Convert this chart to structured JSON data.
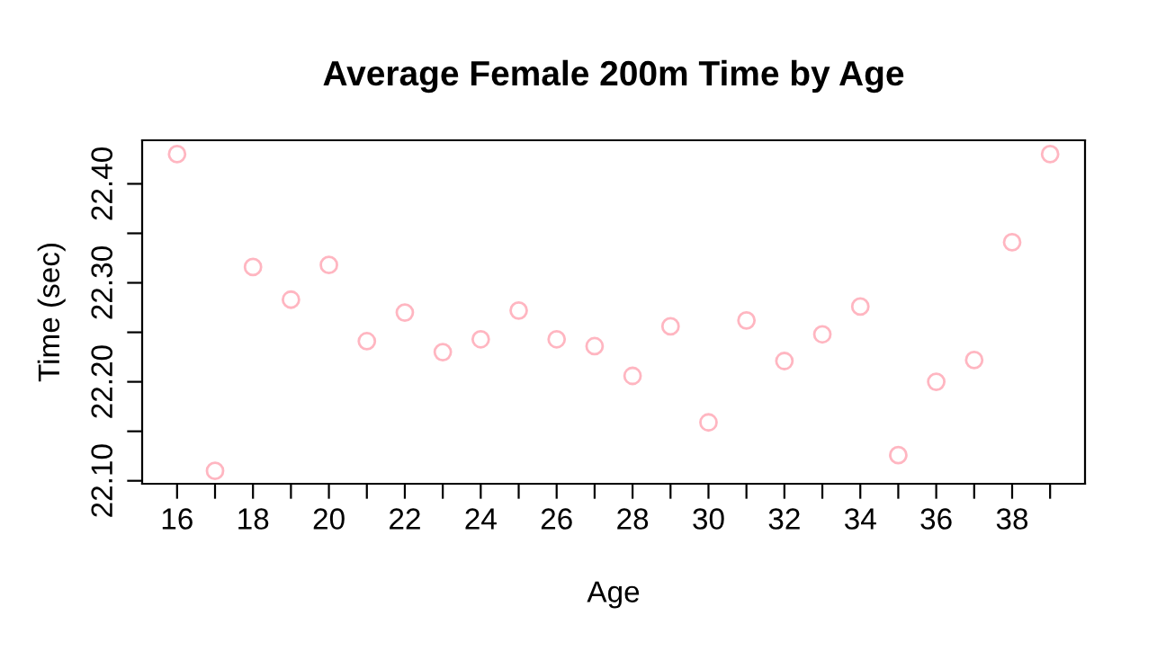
{
  "chart_data": {
    "type": "scatter",
    "title": "Average Female 200m Time by Age",
    "xlabel": "Age",
    "ylabel": "Time (sec)",
    "x": [
      16,
      17,
      18,
      19,
      20,
      21,
      22,
      23,
      24,
      25,
      26,
      27,
      28,
      29,
      30,
      31,
      32,
      33,
      34,
      35,
      36,
      37,
      38,
      39
    ],
    "series": [
      {
        "color": "#ffb6c1",
        "values": [
          22.43,
          22.11,
          22.316,
          22.283,
          22.318,
          22.241,
          22.27,
          22.23,
          22.243,
          22.272,
          22.243,
          22.236,
          22.206,
          22.256,
          22.159,
          22.262,
          22.221,
          22.248,
          22.276,
          22.126,
          22.2,
          22.222,
          22.341,
          22.43
        ]
      }
    ],
    "marker": "circle",
    "grid": false,
    "legend": false,
    "xlim": [
      15.08,
      39.92
    ],
    "ylim": [
      22.097,
      22.444
    ],
    "xticks": [
      16,
      {
        "value": 17,
        "label": null
      },
      18,
      {
        "value": 19,
        "label": null
      },
      20,
      {
        "value": 21,
        "label": null
      },
      22,
      {
        "value": 23,
        "label": null
      },
      24,
      {
        "value": 25,
        "label": null
      },
      26,
      {
        "value": 27,
        "label": null
      },
      28,
      {
        "value": 29,
        "label": null
      },
      30,
      {
        "value": 31,
        "label": null
      },
      32,
      {
        "value": 33,
        "label": null
      },
      34,
      {
        "value": 35,
        "label": null
      },
      36,
      {
        "value": 37,
        "label": null
      },
      38,
      {
        "value": 39,
        "label": null
      }
    ],
    "yticks": [
      {
        "value": 22.1,
        "label": "22.10"
      },
      {
        "value": 22.15,
        "label": null
      },
      {
        "value": 22.2,
        "label": "22.20"
      },
      {
        "value": 22.25,
        "label": null
      },
      {
        "value": 22.3,
        "label": "22.30"
      },
      {
        "value": 22.35,
        "label": null
      },
      {
        "value": 22.4,
        "label": "22.40"
      }
    ]
  }
}
